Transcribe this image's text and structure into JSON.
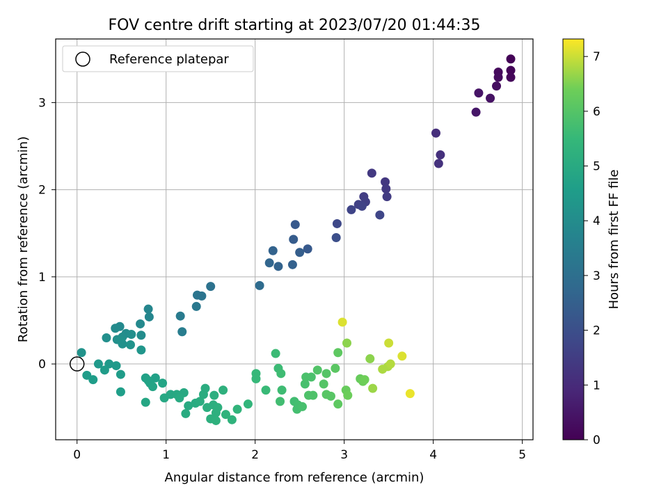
{
  "chart_data": {
    "type": "scatter",
    "title": "FOV centre drift starting at 2023/07/20 01:44:35",
    "xlabel": "Angular distance from reference (arcmin)",
    "ylabel": "Rotation from reference (arcmin)",
    "xlim": [
      -0.24,
      5.12
    ],
    "ylim": [
      -0.87,
      3.73
    ],
    "xticks": [
      0,
      1,
      2,
      3,
      4,
      5
    ],
    "yticks": [
      0,
      1,
      2,
      3
    ],
    "grid": true,
    "legend": {
      "placement": "top-left",
      "entries": [
        "Reference platepar"
      ]
    },
    "reference_point": {
      "x": 0.0,
      "y": 0.0
    },
    "colorbar": {
      "label": "Hours from first FF file",
      "range": [
        0,
        7.32
      ],
      "ticks": [
        0,
        1,
        2,
        3,
        4,
        5,
        6,
        7
      ],
      "colormap": "viridis"
    },
    "points": [
      {
        "x": 4.87,
        "y": 3.5,
        "c": 0.05
      },
      {
        "x": 4.87,
        "y": 3.37,
        "c": 0.1
      },
      {
        "x": 4.87,
        "y": 3.29,
        "c": 0.15
      },
      {
        "x": 4.73,
        "y": 3.35,
        "c": 0.2
      },
      {
        "x": 4.73,
        "y": 3.29,
        "c": 0.25
      },
      {
        "x": 4.71,
        "y": 3.19,
        "c": 0.3
      },
      {
        "x": 4.51,
        "y": 3.11,
        "c": 0.45
      },
      {
        "x": 4.64,
        "y": 3.05,
        "c": 0.4
      },
      {
        "x": 4.48,
        "y": 2.89,
        "c": 0.5
      },
      {
        "x": 4.03,
        "y": 2.65,
        "c": 1.1
      },
      {
        "x": 4.08,
        "y": 2.4,
        "c": 1.15
      },
      {
        "x": 4.06,
        "y": 2.3,
        "c": 1.2
      },
      {
        "x": 3.31,
        "y": 2.19,
        "c": 1.4
      },
      {
        "x": 3.46,
        "y": 2.09,
        "c": 1.35
      },
      {
        "x": 3.47,
        "y": 2.01,
        "c": 1.4
      },
      {
        "x": 3.48,
        "y": 1.92,
        "c": 1.45
      },
      {
        "x": 3.22,
        "y": 1.92,
        "c": 1.5
      },
      {
        "x": 3.24,
        "y": 1.86,
        "c": 1.55
      },
      {
        "x": 3.16,
        "y": 1.83,
        "c": 1.6
      },
      {
        "x": 3.2,
        "y": 1.81,
        "c": 1.65
      },
      {
        "x": 3.08,
        "y": 1.77,
        "c": 1.7
      },
      {
        "x": 3.4,
        "y": 1.71,
        "c": 1.75
      },
      {
        "x": 2.92,
        "y": 1.61,
        "c": 1.8
      },
      {
        "x": 2.91,
        "y": 1.45,
        "c": 2.0
      },
      {
        "x": 2.45,
        "y": 1.6,
        "c": 2.3
      },
      {
        "x": 2.43,
        "y": 1.43,
        "c": 2.4
      },
      {
        "x": 2.59,
        "y": 1.32,
        "c": 2.3
      },
      {
        "x": 2.5,
        "y": 1.28,
        "c": 2.45
      },
      {
        "x": 2.2,
        "y": 1.3,
        "c": 2.6
      },
      {
        "x": 2.16,
        "y": 1.16,
        "c": 2.7
      },
      {
        "x": 2.26,
        "y": 1.12,
        "c": 2.6
      },
      {
        "x": 2.42,
        "y": 1.14,
        "c": 2.55
      },
      {
        "x": 2.05,
        "y": 0.9,
        "c": 2.9
      },
      {
        "x": 1.5,
        "y": 0.89,
        "c": 3.1
      },
      {
        "x": 1.35,
        "y": 0.79,
        "c": 3.2
      },
      {
        "x": 1.4,
        "y": 0.78,
        "c": 3.15
      },
      {
        "x": 1.34,
        "y": 0.66,
        "c": 3.3
      },
      {
        "x": 1.16,
        "y": 0.55,
        "c": 3.4
      },
      {
        "x": 1.18,
        "y": 0.37,
        "c": 3.5
      },
      {
        "x": 0.8,
        "y": 0.63,
        "c": 3.8
      },
      {
        "x": 0.81,
        "y": 0.54,
        "c": 3.8
      },
      {
        "x": 0.71,
        "y": 0.46,
        "c": 3.9
      },
      {
        "x": 0.48,
        "y": 0.43,
        "c": 3.9
      },
      {
        "x": 0.43,
        "y": 0.41,
        "c": 3.95
      },
      {
        "x": 0.72,
        "y": 0.33,
        "c": 4.0
      },
      {
        "x": 0.55,
        "y": 0.35,
        "c": 4.0
      },
      {
        "x": 0.61,
        "y": 0.34,
        "c": 4.05
      },
      {
        "x": 0.51,
        "y": 0.31,
        "c": 4.05
      },
      {
        "x": 0.33,
        "y": 0.3,
        "c": 4.1
      },
      {
        "x": 0.45,
        "y": 0.28,
        "c": 4.1
      },
      {
        "x": 0.49,
        "y": 0.27,
        "c": 4.15
      },
      {
        "x": 0.51,
        "y": 0.23,
        "c": 4.15
      },
      {
        "x": 0.6,
        "y": 0.22,
        "c": 4.2
      },
      {
        "x": 0.72,
        "y": 0.16,
        "c": 4.3
      },
      {
        "x": 0.05,
        "y": 0.13,
        "c": 4.2
      },
      {
        "x": 0.24,
        "y": 0.0,
        "c": 4.4
      },
      {
        "x": 0.36,
        "y": 0.0,
        "c": 4.4
      },
      {
        "x": 0.44,
        "y": -0.02,
        "c": 4.45
      },
      {
        "x": 0.31,
        "y": -0.07,
        "c": 4.5
      },
      {
        "x": 0.49,
        "y": -0.12,
        "c": 4.5
      },
      {
        "x": 0.11,
        "y": -0.13,
        "c": 4.5
      },
      {
        "x": 0.18,
        "y": -0.18,
        "c": 4.55
      },
      {
        "x": 0.49,
        "y": -0.32,
        "c": 4.6
      },
      {
        "x": 0.77,
        "y": -0.16,
        "c": 4.7
      },
      {
        "x": 0.88,
        "y": -0.16,
        "c": 4.7
      },
      {
        "x": 0.8,
        "y": -0.19,
        "c": 4.75
      },
      {
        "x": 0.82,
        "y": -0.22,
        "c": 4.75
      },
      {
        "x": 0.85,
        "y": -0.26,
        "c": 4.8
      },
      {
        "x": 0.96,
        "y": -0.22,
        "c": 4.8
      },
      {
        "x": 0.77,
        "y": -0.44,
        "c": 4.85
      },
      {
        "x": 0.98,
        "y": -0.39,
        "c": 4.9
      },
      {
        "x": 1.05,
        "y": -0.35,
        "c": 4.9
      },
      {
        "x": 1.12,
        "y": -0.35,
        "c": 4.95
      },
      {
        "x": 1.2,
        "y": -0.33,
        "c": 4.95
      },
      {
        "x": 1.15,
        "y": -0.39,
        "c": 5.0
      },
      {
        "x": 1.25,
        "y": -0.48,
        "c": 5.0
      },
      {
        "x": 1.22,
        "y": -0.57,
        "c": 5.05
      },
      {
        "x": 1.33,
        "y": -0.45,
        "c": 5.05
      },
      {
        "x": 1.38,
        "y": -0.43,
        "c": 5.1
      },
      {
        "x": 1.44,
        "y": -0.28,
        "c": 5.1
      },
      {
        "x": 1.42,
        "y": -0.35,
        "c": 5.1
      },
      {
        "x": 1.46,
        "y": -0.5,
        "c": 5.15
      },
      {
        "x": 1.54,
        "y": -0.36,
        "c": 5.15
      },
      {
        "x": 1.53,
        "y": -0.47,
        "c": 5.15
      },
      {
        "x": 1.58,
        "y": -0.5,
        "c": 5.2
      },
      {
        "x": 1.56,
        "y": -0.56,
        "c": 5.2
      },
      {
        "x": 1.5,
        "y": -0.63,
        "c": 5.2
      },
      {
        "x": 1.56,
        "y": -0.65,
        "c": 5.25
      },
      {
        "x": 1.64,
        "y": -0.3,
        "c": 5.25
      },
      {
        "x": 1.67,
        "y": -0.58,
        "c": 5.3
      },
      {
        "x": 1.74,
        "y": -0.64,
        "c": 5.3
      },
      {
        "x": 1.8,
        "y": -0.52,
        "c": 5.35
      },
      {
        "x": 1.92,
        "y": -0.46,
        "c": 5.4
      },
      {
        "x": 2.01,
        "y": -0.11,
        "c": 5.5
      },
      {
        "x": 2.01,
        "y": -0.17,
        "c": 5.5
      },
      {
        "x": 2.12,
        "y": -0.3,
        "c": 5.55
      },
      {
        "x": 2.23,
        "y": 0.12,
        "c": 5.6
      },
      {
        "x": 2.26,
        "y": -0.05,
        "c": 5.6
      },
      {
        "x": 2.29,
        "y": -0.11,
        "c": 5.65
      },
      {
        "x": 2.3,
        "y": -0.3,
        "c": 5.65
      },
      {
        "x": 2.28,
        "y": -0.43,
        "c": 5.7
      },
      {
        "x": 2.44,
        "y": -0.43,
        "c": 5.7
      },
      {
        "x": 2.48,
        "y": -0.47,
        "c": 5.75
      },
      {
        "x": 2.47,
        "y": -0.52,
        "c": 5.75
      },
      {
        "x": 2.53,
        "y": -0.49,
        "c": 5.8
      },
      {
        "x": 2.56,
        "y": -0.23,
        "c": 5.8
      },
      {
        "x": 2.57,
        "y": -0.15,
        "c": 5.85
      },
      {
        "x": 2.63,
        "y": -0.15,
        "c": 5.85
      },
      {
        "x": 2.6,
        "y": -0.36,
        "c": 5.9
      },
      {
        "x": 2.65,
        "y": -0.36,
        "c": 5.9
      },
      {
        "x": 2.7,
        "y": -0.07,
        "c": 5.95
      },
      {
        "x": 2.77,
        "y": -0.23,
        "c": 6.0
      },
      {
        "x": 2.8,
        "y": -0.11,
        "c": 6.0
      },
      {
        "x": 2.8,
        "y": -0.35,
        "c": 6.05
      },
      {
        "x": 2.85,
        "y": -0.37,
        "c": 6.05
      },
      {
        "x": 2.9,
        "y": -0.05,
        "c": 6.1
      },
      {
        "x": 2.93,
        "y": 0.13,
        "c": 6.15
      },
      {
        "x": 2.93,
        "y": -0.46,
        "c": 6.15
      },
      {
        "x": 3.02,
        "y": -0.3,
        "c": 6.3
      },
      {
        "x": 3.04,
        "y": -0.36,
        "c": 6.35
      },
      {
        "x": 3.03,
        "y": 0.24,
        "c": 6.6
      },
      {
        "x": 2.98,
        "y": 0.48,
        "c": 7.1
      },
      {
        "x": 3.18,
        "y": -0.17,
        "c": 6.3
      },
      {
        "x": 3.21,
        "y": -0.2,
        "c": 6.35
      },
      {
        "x": 3.23,
        "y": -0.18,
        "c": 6.4
      },
      {
        "x": 3.29,
        "y": 0.06,
        "c": 6.6
      },
      {
        "x": 3.32,
        "y": -0.28,
        "c": 6.7
      },
      {
        "x": 3.43,
        "y": -0.06,
        "c": 6.8
      },
      {
        "x": 3.49,
        "y": -0.03,
        "c": 6.8
      },
      {
        "x": 3.52,
        "y": 0.0,
        "c": 6.85
      },
      {
        "x": 3.5,
        "y": 0.24,
        "c": 7.0
      },
      {
        "x": 3.65,
        "y": 0.09,
        "c": 7.1
      },
      {
        "x": 3.74,
        "y": -0.34,
        "c": 7.2
      }
    ]
  }
}
